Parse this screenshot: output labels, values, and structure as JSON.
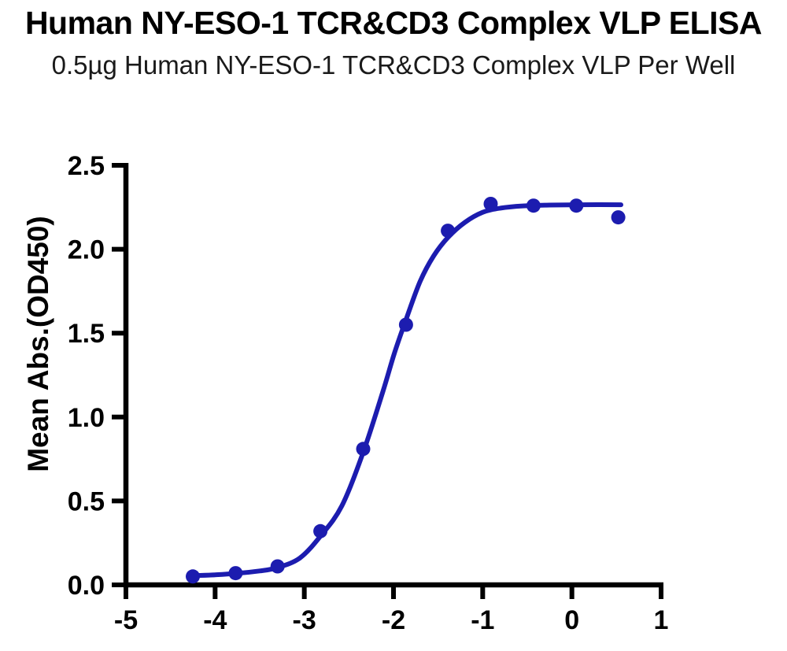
{
  "chart_data": {
    "type": "scatter",
    "title": "Human NY-ESO-1 TCR&CD3 Complex VLP ELISA",
    "subtitle": "0.5µg Human NY-ESO-1 TCR&CD3 Complex VLP Per Well",
    "xlabel": "",
    "ylabel": "Mean Abs.(OD450)",
    "xlim": [
      -5,
      1
    ],
    "ylim": [
      0,
      2.5
    ],
    "x_ticks": [
      -5,
      -4,
      -3,
      -2,
      -1,
      0,
      1
    ],
    "x_tick_labels": [
      "-5",
      "-4",
      "-3",
      "-2",
      "-1",
      "0",
      "1"
    ],
    "y_ticks": [
      0,
      0.5,
      1,
      1.5,
      2,
      2.5
    ],
    "y_tick_labels": [
      "0.0",
      "0.5",
      "1.0",
      "1.5",
      "2.0",
      "2.5"
    ],
    "grid": false,
    "legend": "none",
    "points": [
      [
        -4.25,
        0.05
      ],
      [
        -3.77,
        0.07
      ],
      [
        -3.3,
        0.11
      ],
      [
        -2.82,
        0.32
      ],
      [
        -2.34,
        0.81
      ],
      [
        -1.86,
        1.55
      ],
      [
        -1.39,
        2.11
      ],
      [
        -0.91,
        2.27
      ],
      [
        -0.43,
        2.26
      ],
      [
        0.05,
        2.26
      ],
      [
        0.52,
        2.19
      ]
    ],
    "fit_curve": [
      [
        -4.25,
        0.055
      ],
      [
        -4.0,
        0.06
      ],
      [
        -3.77,
        0.068
      ],
      [
        -3.5,
        0.083
      ],
      [
        -3.3,
        0.103
      ],
      [
        -3.05,
        0.16
      ],
      [
        -2.82,
        0.29
      ],
      [
        -2.58,
        0.47
      ],
      [
        -2.34,
        0.79
      ],
      [
        -2.12,
        1.15
      ],
      [
        -1.99,
        1.38
      ],
      [
        -1.86,
        1.58
      ],
      [
        -1.7,
        1.81
      ],
      [
        -1.55,
        1.96
      ],
      [
        -1.39,
        2.07
      ],
      [
        -1.2,
        2.16
      ],
      [
        -1.0,
        2.22
      ],
      [
        -0.8,
        2.245
      ],
      [
        -0.55,
        2.258
      ],
      [
        -0.25,
        2.263
      ],
      [
        0.1,
        2.265
      ],
      [
        0.55,
        2.265
      ]
    ]
  },
  "colors": {
    "curve": "#1c1caf",
    "axis": "#000000",
    "text": "#000000",
    "background": "#ffffff"
  }
}
